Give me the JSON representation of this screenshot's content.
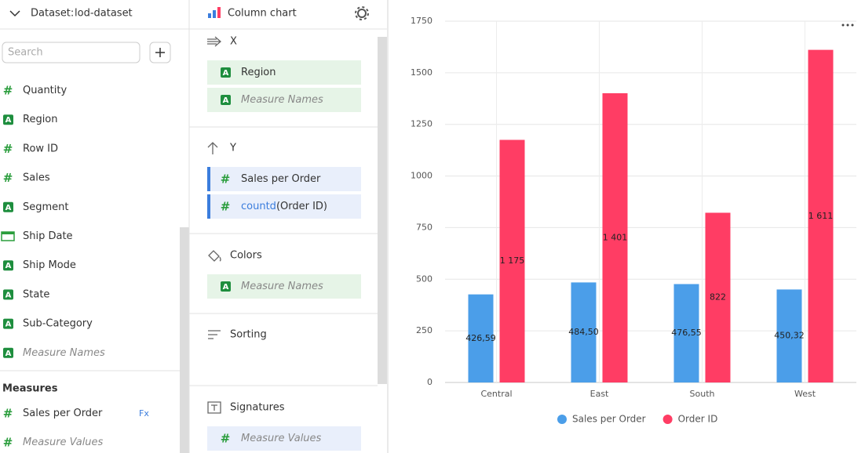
{
  "dataset_panel": {
    "label": "Dataset:",
    "dataset": "lod-dataset",
    "search_placeholder": "Search",
    "fields": [
      {
        "icon": "#",
        "name": "Quantity"
      },
      {
        "icon": "A",
        "name": "Region"
      },
      {
        "icon": "#",
        "name": "Row ID"
      },
      {
        "icon": "#",
        "name": "Sales"
      },
      {
        "icon": "A",
        "name": "Segment"
      },
      {
        "name": "Ship Date"
      },
      {
        "icon": "A",
        "name": "Ship Mode"
      },
      {
        "icon": "A",
        "name": "State"
      },
      {
        "icon": "A",
        "name": "Sub-Category"
      },
      {
        "icon": "A",
        "name": "Measure Names",
        "italic": true
      }
    ],
    "measures_title": "Measures",
    "measures": [
      {
        "icon": "#",
        "name": "Sales per Order",
        "badge": "Fx"
      },
      {
        "icon": "#",
        "name": "Measure Values",
        "italic": true
      }
    ]
  },
  "wizard_panel": {
    "chart_type": "Column chart",
    "sections": [
      {
        "title": "X",
        "items": [
          {
            "icon": "A",
            "name": "Region"
          },
          {
            "icon": "A",
            "name": "Measure Names",
            "italic": true
          }
        ]
      },
      {
        "title": "Y",
        "items": [
          {
            "icon": "#",
            "name": "Sales per Order"
          },
          {
            "icon": "#",
            "function": "countd",
            "name": "(Order ID)"
          }
        ]
      },
      {
        "title": "Colors",
        "items": [
          {
            "icon": "A",
            "name": "Measure Names",
            "italic": true
          }
        ]
      },
      {
        "title": "Sorting",
        "items": []
      },
      {
        "title": "Signatures",
        "items": [
          {
            "icon": "#",
            "name": "Measure Values",
            "italic": true
          }
        ]
      }
    ]
  },
  "chart_data": {
    "type": "bar",
    "categories": [
      "Central",
      "East",
      "South",
      "West"
    ],
    "series": [
      {
        "name": "Sales per Order",
        "color": "#4b9ee9",
        "values": [
          426.59,
          484.5,
          476.55,
          450.32
        ],
        "value_labels": [
          "426,59",
          "484,50",
          "476,55",
          "450,32"
        ]
      },
      {
        "name": "Order ID",
        "color": "#ff3d64",
        "values": [
          1175,
          1401,
          822,
          1611
        ],
        "value_labels": [
          "1 175",
          "1 401",
          "822",
          "1 611"
        ]
      }
    ],
    "ylim": [
      0,
      1750
    ],
    "yticks": [
      0,
      250,
      500,
      750,
      1000,
      1250,
      1500,
      1750
    ],
    "grid": true,
    "legend": "bottom"
  }
}
